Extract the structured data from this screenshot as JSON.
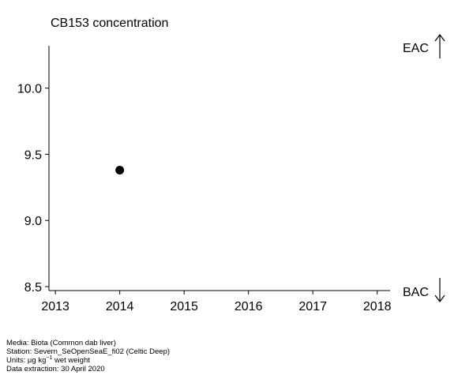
{
  "chart_data": {
    "type": "scatter",
    "title": "CB153 concentration",
    "x": [
      2014
    ],
    "y": [
      9.38
    ],
    "xlim": [
      2012.9,
      2018.2
    ],
    "ylim": [
      8.47,
      10.32
    ],
    "xticks": [
      2013,
      2014,
      2015,
      2016,
      2017,
      2018
    ],
    "yticks": [
      8.5,
      9.0,
      9.5,
      10.0
    ],
    "ytick_labels": [
      "8.5",
      "9.0",
      "9.5",
      "10.0"
    ],
    "grid": false,
    "reference_levels": {
      "upper": {
        "label": "EAC",
        "direction": "up"
      },
      "lower": {
        "label": "BAC",
        "direction": "down"
      }
    }
  },
  "footer": {
    "media": "Media: Biota (Common dab liver)",
    "station": "Station: Severn_SeOpenSeaE_fi02 (Celtic Deep)",
    "units_prefix": "Units:  µg kg",
    "units_exp": "−1",
    "units_suffix": " wet weight",
    "extraction": "Data extraction: 30 April 2020"
  }
}
